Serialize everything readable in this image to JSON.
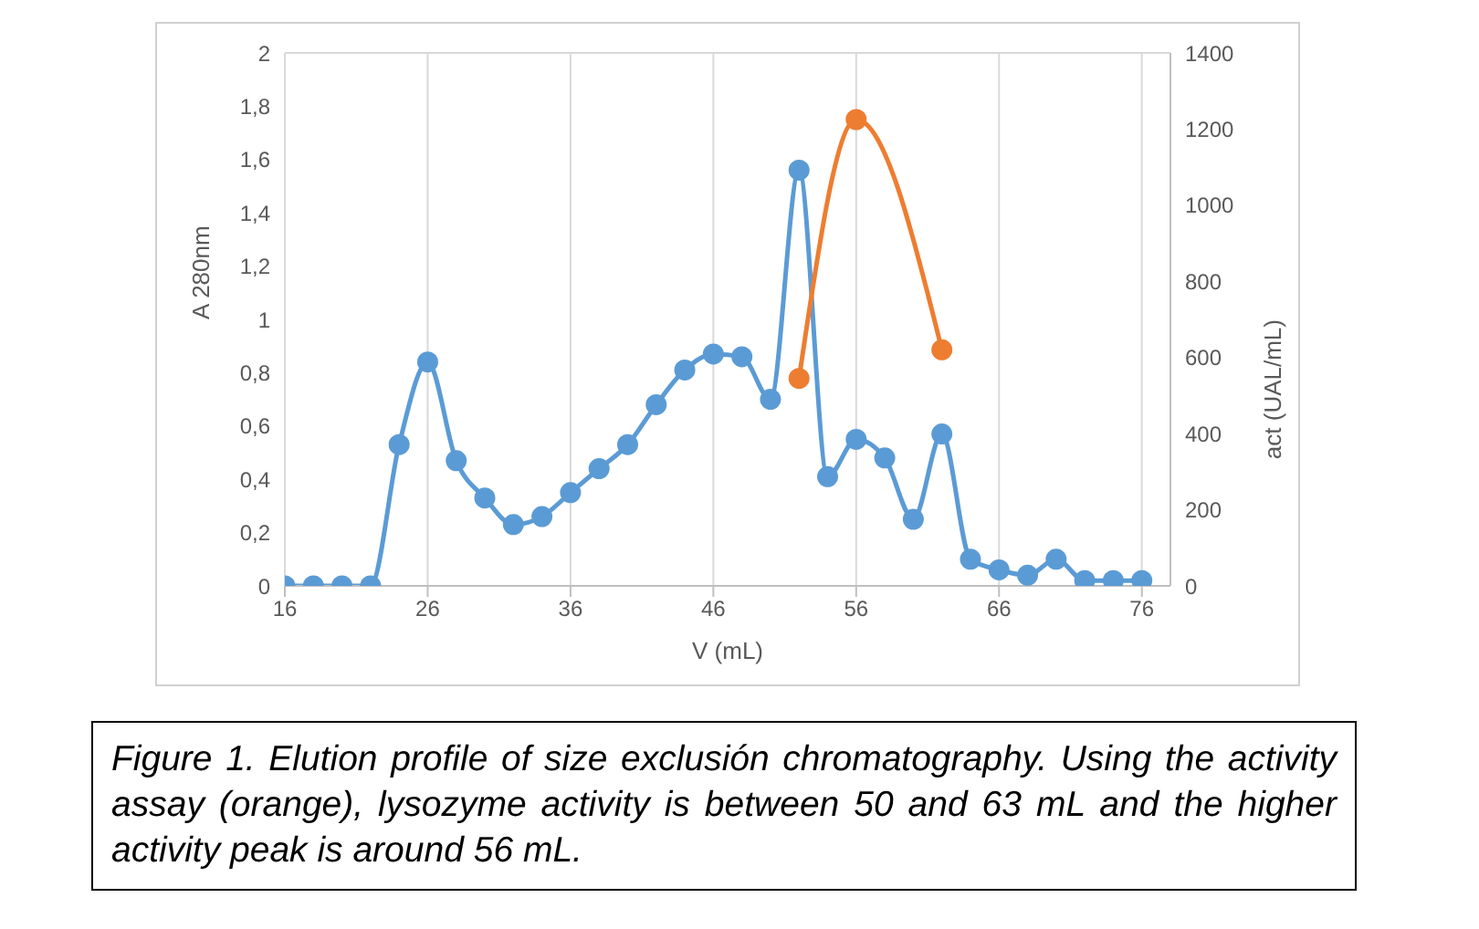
{
  "chart_data": {
    "type": "line",
    "x": [
      16,
      18,
      20,
      22,
      24,
      26,
      28,
      30,
      32,
      34,
      36,
      38,
      40,
      42,
      44,
      46,
      48,
      50,
      52,
      54,
      56,
      58,
      60,
      62,
      64,
      66,
      68,
      70,
      72,
      74,
      76
    ],
    "series": [
      {
        "color": "#5b9bd5",
        "values": [
          0,
          0,
          0,
          0,
          0.53,
          0.84,
          0.47,
          0.33,
          0.23,
          0.26,
          0.35,
          0.44,
          0.53,
          0.68,
          0.81,
          0.87,
          0.86,
          0.7,
          1.56,
          0.41,
          0.55,
          0.48,
          0.25,
          0.57,
          0.1,
          0.06,
          0.04,
          0.1,
          0.02,
          0.02,
          0.02
        ]
      },
      {
        "color": "#ed7d31",
        "axis": "y2",
        "x": [
          52,
          56,
          62
        ],
        "values": [
          545,
          1225,
          620
        ]
      }
    ],
    "xlabel": "V (mL)",
    "ylabel": "A 280nm",
    "y2label": "act (UAL/mL)",
    "xlim": [
      16,
      78
    ],
    "xticks": [
      16,
      26,
      36,
      46,
      56,
      66,
      76
    ],
    "ylim": [
      0,
      2
    ],
    "yticks": [
      0,
      {
        "value": 0.2,
        "label": "0,2"
      },
      {
        "value": 0.4,
        "label": "0,4"
      },
      {
        "value": 0.6,
        "label": "0,6"
      },
      {
        "value": 0.8,
        "label": "0,8"
      },
      1,
      {
        "value": 1.2,
        "label": "1,2"
      },
      {
        "value": 1.4,
        "label": "1,4"
      },
      {
        "value": 1.6,
        "label": "1,6"
      },
      {
        "value": 1.8,
        "label": "1,8"
      },
      2
    ],
    "y2lim": [
      0,
      1400
    ],
    "y2ticks": [
      0,
      200,
      400,
      600,
      800,
      1000,
      1200,
      1400
    ],
    "grid": true,
    "marker": "circle",
    "line_style": "solid",
    "annotations": [
      "Figure 1. Elution profile of size exclusión chromatography. Using the activity assay (orange), lysozyme activity is between 50 and 63 mL and the higher activity peak is around 56 mL."
    ]
  }
}
